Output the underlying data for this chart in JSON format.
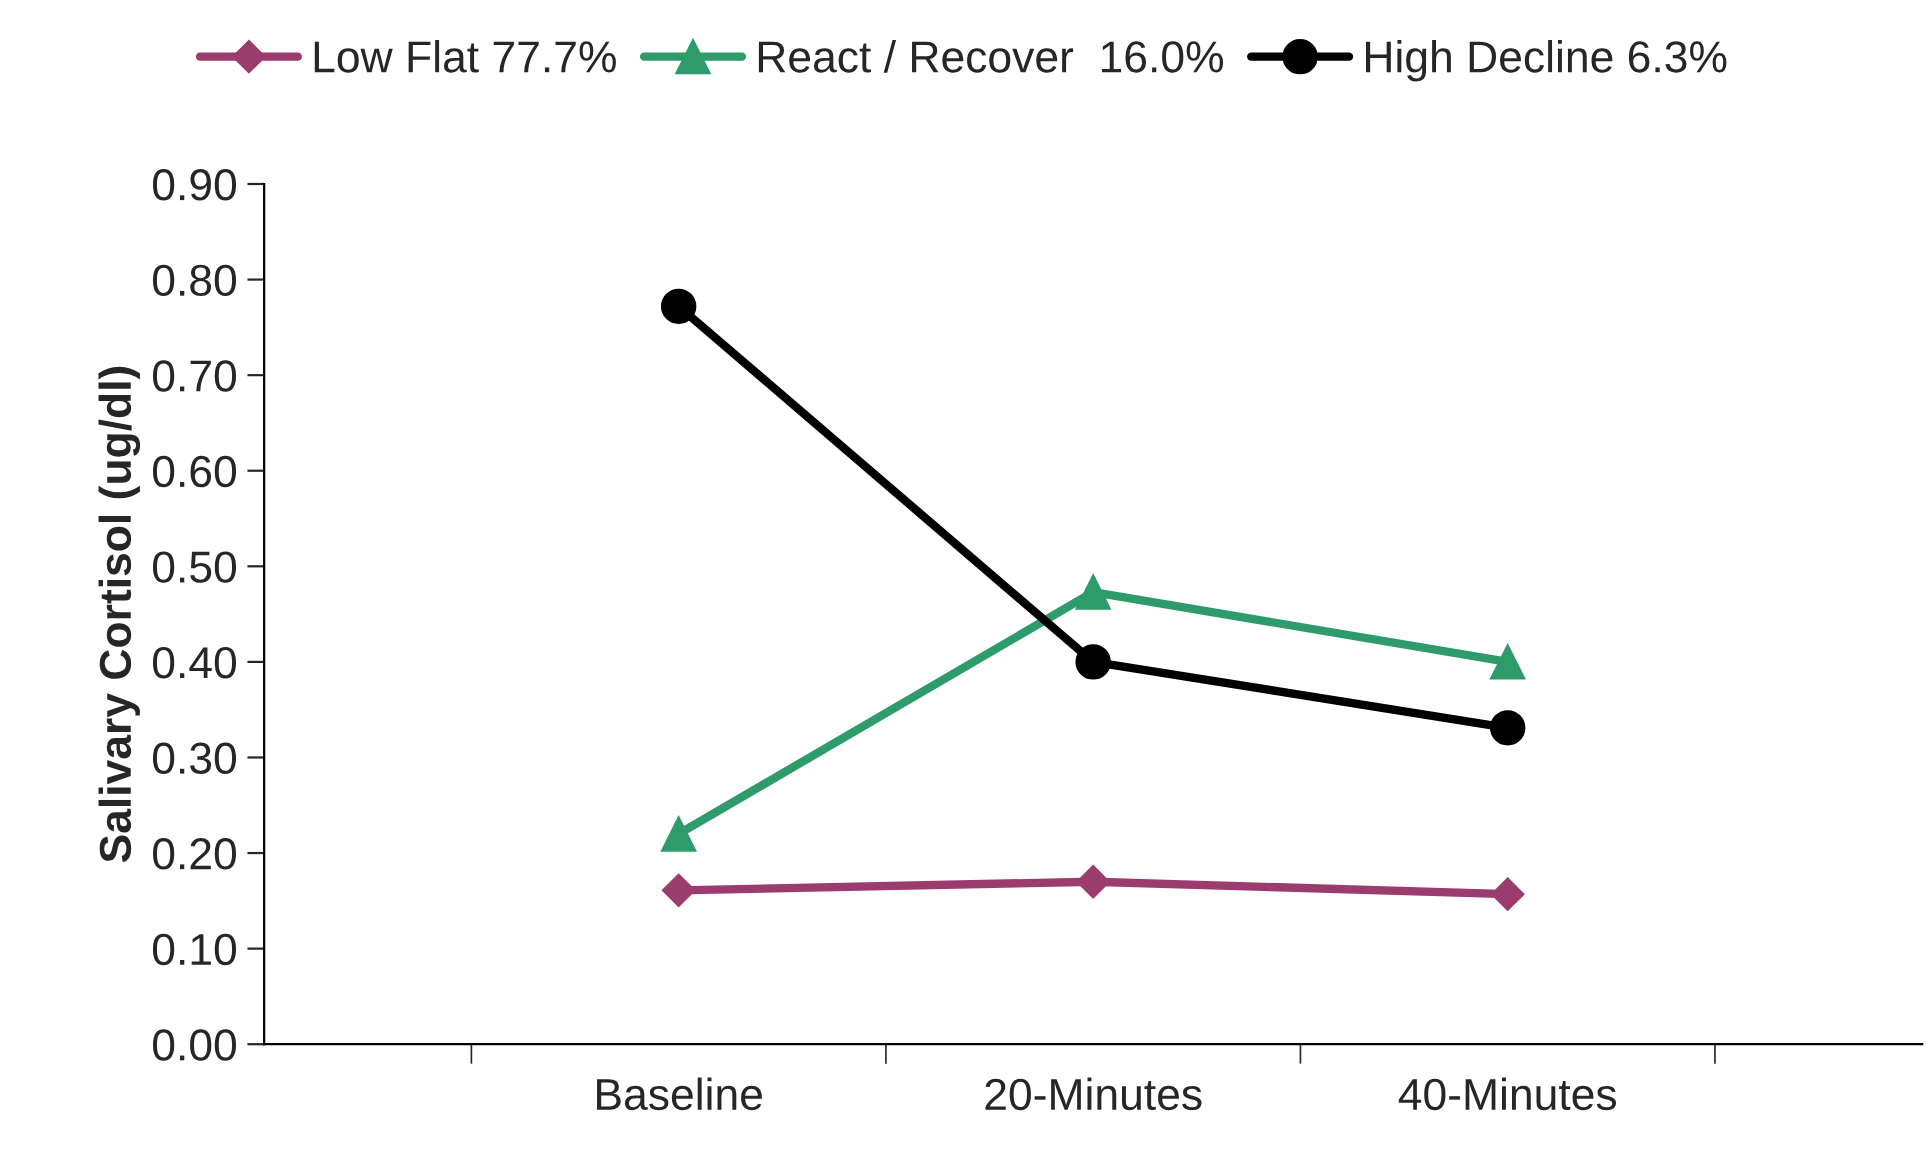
{
  "chart_data": {
    "type": "line",
    "ylabel": "Salivary Cortisol (ug/dl)",
    "categories": [
      "Baseline",
      "20-Minutes",
      "40-Minutes"
    ],
    "series": [
      {
        "name": "Low Flat 77.7%",
        "color": "#9b3b6e",
        "marker": "diamond",
        "values": [
          0.161,
          0.17,
          0.157
        ]
      },
      {
        "name": "React / Recover  16.0%",
        "color": "#2e9b6a",
        "marker": "triangle",
        "values": [
          0.22,
          0.473,
          0.4
        ]
      },
      {
        "name": "High Decline 6.3%",
        "color": "#000000",
        "marker": "circle",
        "values": [
          0.772,
          0.4,
          0.331
        ]
      }
    ],
    "ylim": [
      0,
      0.9
    ],
    "yticks": [
      {
        "value": 0,
        "label": "0.00"
      },
      {
        "value": 0.1,
        "label": "0.10"
      },
      {
        "value": 0.2,
        "label": "0.20"
      },
      {
        "value": 0.3,
        "label": "0.30"
      },
      {
        "value": 0.4,
        "label": "0.40"
      },
      {
        "value": 0.5,
        "label": "0.50"
      },
      {
        "value": 0.6,
        "label": "0.60"
      },
      {
        "value": 0.7,
        "label": "0.70"
      },
      {
        "value": 0.8,
        "label": "0.80"
      },
      {
        "value": 0.9,
        "label": "0.90"
      }
    ],
    "legend": "top",
    "grid": false
  }
}
